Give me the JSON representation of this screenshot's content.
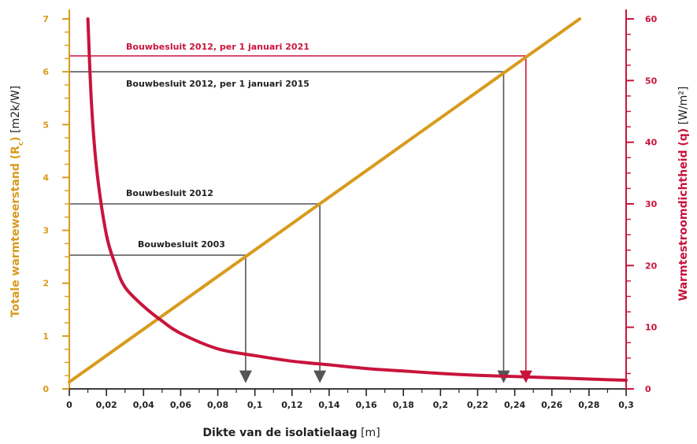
{
  "chart_data": {
    "type": "line",
    "colors": {
      "resistance": "#d89b1c",
      "flux": "#c8143c",
      "guide": "#555555",
      "axis_text": "#222222"
    },
    "x_axis": {
      "label_bold": "Dikte van de isolatielaag",
      "label_unit": "[m]",
      "range": [
        0,
        0.3
      ],
      "ticks": [
        0,
        0.02,
        0.04,
        0.06,
        0.08,
        0.1,
        0.12,
        0.14,
        0.16,
        0.18,
        0.2,
        0.22,
        0.24,
        0.26,
        0.28,
        0.3
      ],
      "tick_labels": [
        "0",
        "0,02",
        "0,04",
        "0,06",
        "0,08",
        "0,1",
        "0,12",
        "0,14",
        "0,16",
        "0,18",
        "0,2",
        "0,22",
        "0,24",
        "0,26",
        "0,28",
        "0,3"
      ]
    },
    "y_left": {
      "label_bold": "Totale warmteweerstand (R",
      "label_sub": "c",
      "label_bold_end": ")",
      "label_unit": " [m2k/W]",
      "range": [
        0,
        7
      ],
      "ticks": [
        0,
        1,
        2,
        3,
        4,
        5,
        6,
        7
      ],
      "tick_labels": [
        "0",
        "1",
        "2",
        "3",
        "4",
        "5",
        "6",
        "7"
      ]
    },
    "y_right": {
      "label_bold": "Warmtestroomdichtheid (q)",
      "label_unit": " [W/m²]",
      "range": [
        0,
        60
      ],
      "ticks": [
        0,
        10,
        20,
        30,
        40,
        50,
        60
      ],
      "tick_labels": [
        "0",
        "10",
        "20",
        "30",
        "40",
        "50",
        "60"
      ]
    },
    "series": [
      {
        "axis": "left",
        "x": [
          0,
          0.275
        ],
        "y": [
          0.13,
          7.0
        ]
      },
      {
        "axis": "right",
        "x": [
          0.01,
          0.012,
          0.015,
          0.02,
          0.025,
          0.03,
          0.04,
          0.05,
          0.06,
          0.08,
          0.1,
          0.12,
          0.14,
          0.16,
          0.18,
          0.2,
          0.22,
          0.24,
          0.26,
          0.28,
          0.3
        ],
        "y": [
          60,
          46,
          35,
          25,
          20,
          16.5,
          13.4,
          11,
          9,
          6.5,
          5.4,
          4.5,
          3.9,
          3.3,
          2.9,
          2.5,
          2.2,
          2.0,
          1.8,
          1.6,
          1.4
        ]
      }
    ],
    "annotations": [
      {
        "label": "Bouwbesluit 2012, per 1 januari 2021",
        "rc": 6.3,
        "x": 0.246,
        "color": "flux"
      },
      {
        "label": "Bouwbesluit 2012, per 1 januari 2015",
        "rc": 6.0,
        "x": 0.234,
        "color": "guide"
      },
      {
        "label": "Bouwbesluit 2012",
        "rc": 3.5,
        "x": 0.135,
        "color": "guide"
      },
      {
        "label": "Bouwbesluit 2003",
        "rc": 2.53,
        "x": 0.095,
        "color": "guide"
      }
    ],
    "grid": false
  }
}
